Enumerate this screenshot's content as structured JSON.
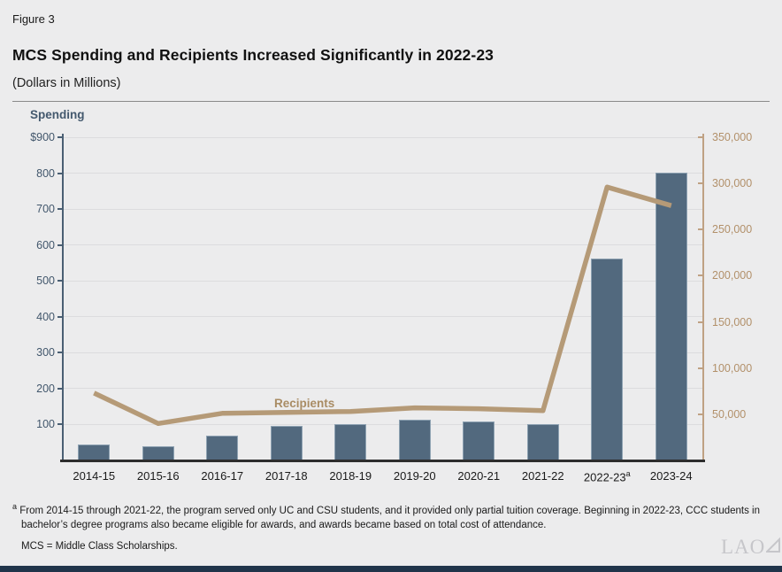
{
  "figure_label": "Figure 3",
  "title": "MCS Spending and Recipients Increased Significantly in 2022-23",
  "subtitle": "(Dollars in Millions)",
  "chart_data": {
    "type": "bar",
    "categories": [
      "2014-15",
      "2015-16",
      "2016-17",
      "2017-18",
      "2018-19",
      "2019-20",
      "2020-21",
      "2021-22",
      "2022-23",
      "2023-24"
    ],
    "footnote_marker": {
      "category_index": 8,
      "marker": "a"
    },
    "series": [
      {
        "name": "Spending",
        "type": "bar",
        "axis": "left",
        "color": "#52697e",
        "values": [
          45,
          40,
          68,
          97,
          102,
          113,
          108,
          102,
          563,
          801
        ]
      },
      {
        "name": "Recipients",
        "type": "line",
        "axis": "right",
        "color": "#b59a77",
        "values": [
          73000,
          40000,
          51000,
          52000,
          53000,
          57000,
          56000,
          54000,
          296000,
          276000
        ]
      }
    ],
    "left_axis": {
      "title": "Spending",
      "min": 0,
      "max": 900,
      "tick_values": [
        900,
        800,
        700,
        600,
        500,
        400,
        300,
        200,
        100
      ],
      "tick_labels": [
        "$900",
        "800",
        "700",
        "600",
        "500",
        "400",
        "300",
        "200",
        "100"
      ]
    },
    "right_axis": {
      "title": "Recipients",
      "min": 0,
      "max": 350000,
      "tick_values": [
        350000,
        300000,
        250000,
        200000,
        150000,
        100000,
        50000
      ],
      "tick_labels": [
        "350,000",
        "300,000",
        "250,000",
        "200,000",
        "150,000",
        "100,000",
        "50,000"
      ]
    },
    "grid": true,
    "legend_position": "inline-labels"
  },
  "footnote": {
    "marker": "a",
    "text": "From 2014-15 through 2021-22, the program served only UC and CSU students, and it provided only partial tuition coverage. Beginning in 2022-23, CCC students in bachelor’s degree programs also became eligible for awards, and awards became based on total cost of attendance."
  },
  "abbreviation_note": "MCS = Middle Class Scholarships.",
  "logo_text": "LAO",
  "colors": {
    "background": "#ececed",
    "bar": "#52697e",
    "line": "#b59a77",
    "left_axis": "#4a5f73",
    "right_axis": "#bfa183",
    "baseline": "#2d2d2d",
    "gridline": "#dcdcde",
    "text": "#1a1a1a",
    "logo": "#c6c6ca"
  }
}
